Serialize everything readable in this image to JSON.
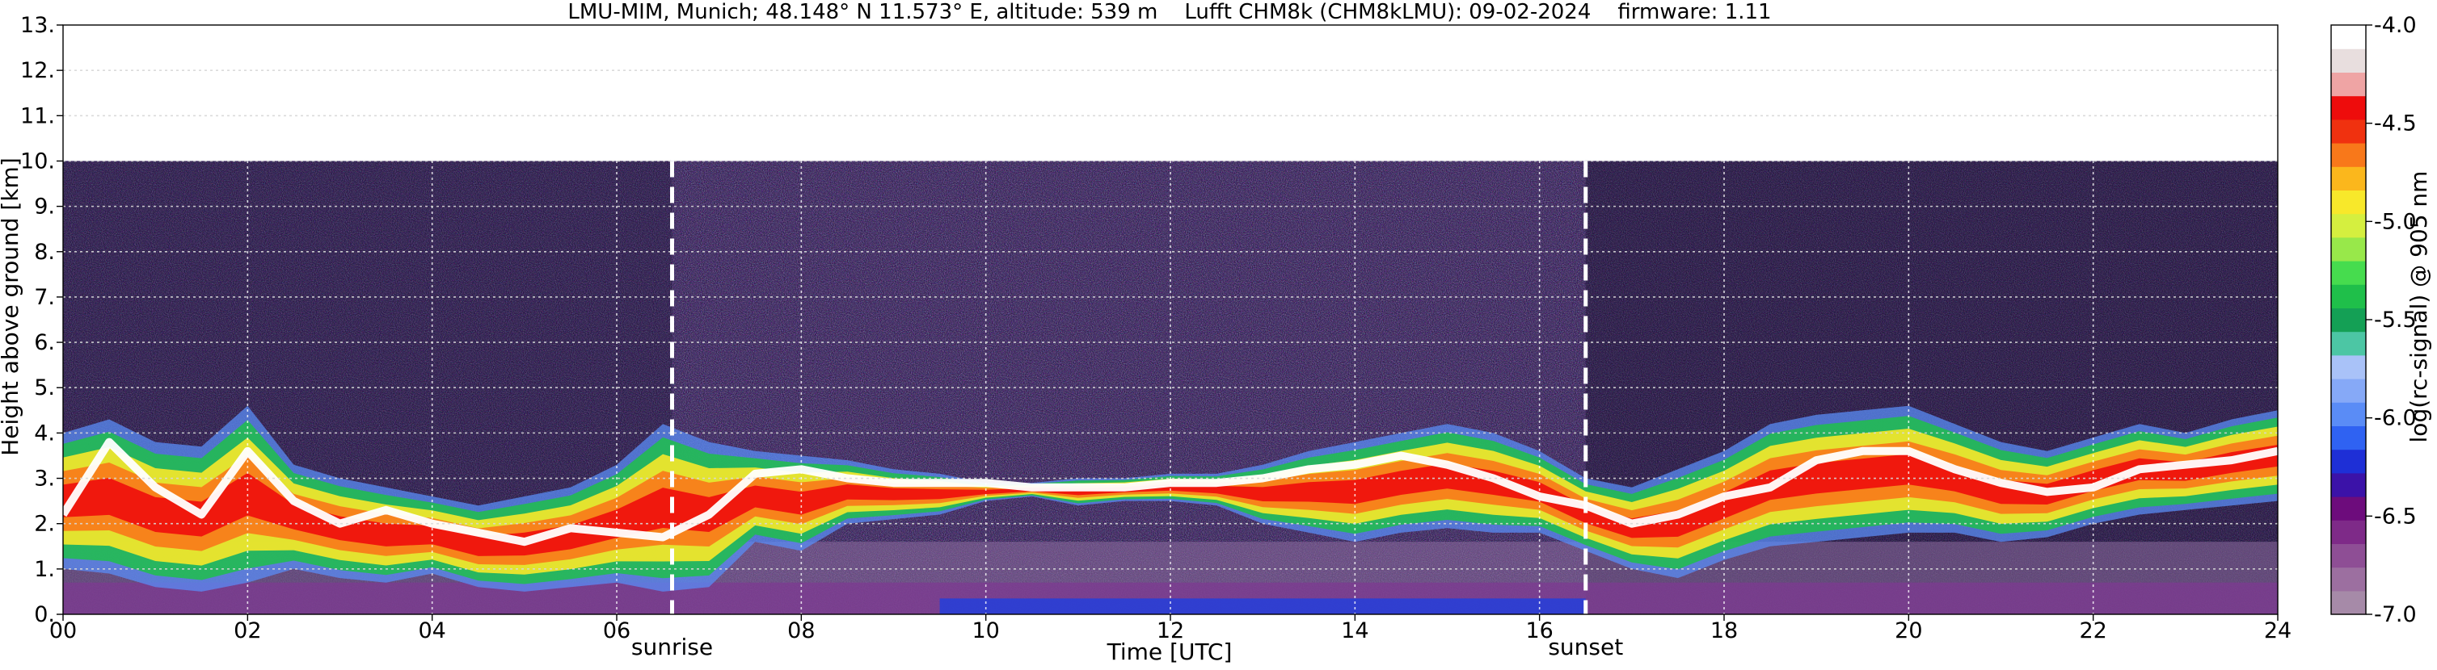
{
  "chart_data": {
    "type": "heatmap",
    "title": "LMU-MIM, Munich; 48.148° N 11.573° E, altitude: 539 m    Lufft CHM8k (CHM8kLMU): 09-02-2024    firmware: 1.11",
    "xlabel": "Time [UTC]",
    "ylabel": "Height above ground [km]",
    "xlim": [
      0,
      24
    ],
    "ylim": [
      0,
      13
    ],
    "x_ticks": [
      0,
      2,
      4,
      6,
      8,
      10,
      12,
      14,
      16,
      18,
      20,
      22,
      24
    ],
    "x_tick_labels": [
      "00",
      "02",
      "04",
      "06",
      "08",
      "10",
      "12",
      "14",
      "16",
      "18",
      "20",
      "22",
      "24"
    ],
    "y_ticks": [
      0,
      1,
      2,
      3,
      4,
      5,
      6,
      7,
      8,
      9,
      10,
      11,
      12,
      13
    ],
    "y_tick_labels": [
      "0.",
      "1.",
      "2.",
      "3.",
      "4.",
      "5.",
      "6.",
      "7.",
      "8.",
      "9.",
      "10.",
      "11.",
      "12.",
      "13."
    ],
    "grid": true,
    "data_max_height_km": 10,
    "colorbar": {
      "label": "log(rc-signal) @ 905 nm",
      "range": [
        -7.0,
        -4.0
      ],
      "tick_values": [
        -7.0,
        -6.5,
        -6.0,
        -5.5,
        -5.0,
        -4.5,
        -4.0
      ],
      "tick_labels": [
        "-7.0",
        "-6.5",
        "-6.0",
        "-5.5",
        "-5.0",
        "-4.5",
        "-4.0"
      ],
      "colors": [
        "#a68aa8",
        "#9c6fa0",
        "#8e4e95",
        "#7e2a88",
        "#6d0c7c",
        "#3b12a8",
        "#1e2fd6",
        "#2f62f2",
        "#5a8cf6",
        "#86a9f7",
        "#a9c2f8",
        "#4cc6a4",
        "#14a055",
        "#1fbf4a",
        "#46dc4e",
        "#98e84a",
        "#d5ef3f",
        "#f8e82a",
        "#fbb71c",
        "#f8781a",
        "#f0310f",
        "#ee0c0c",
        "#efa4a4",
        "#e8dede",
        "#ffffff"
      ]
    },
    "annotations": [
      {
        "label": "sunrise",
        "x": 6.6
      },
      {
        "label": "sunset",
        "x": 16.5
      }
    ],
    "layers": {
      "cloud_layer_top_km": [
        [
          0,
          4.0
        ],
        [
          0.5,
          4.3
        ],
        [
          1.0,
          3.8
        ],
        [
          1.5,
          3.7
        ],
        [
          2.0,
          4.6
        ],
        [
          2.5,
          3.3
        ],
        [
          3.0,
          3.0
        ],
        [
          3.5,
          2.8
        ],
        [
          4.0,
          2.6
        ],
        [
          4.5,
          2.4
        ],
        [
          5.0,
          2.6
        ],
        [
          5.5,
          2.8
        ],
        [
          6.0,
          3.3
        ],
        [
          6.5,
          4.2
        ],
        [
          7.0,
          3.8
        ],
        [
          7.5,
          3.6
        ],
        [
          8.0,
          3.5
        ],
        [
          8.5,
          3.4
        ],
        [
          9.0,
          3.2
        ],
        [
          9.5,
          3.1
        ],
        [
          10.0,
          2.9
        ],
        [
          10.5,
          2.9
        ],
        [
          11.0,
          3.0
        ],
        [
          11.5,
          3.0
        ],
        [
          12.0,
          3.1
        ],
        [
          12.5,
          3.1
        ],
        [
          13.0,
          3.3
        ],
        [
          13.5,
          3.6
        ],
        [
          14.0,
          3.8
        ],
        [
          14.5,
          4.0
        ],
        [
          15.0,
          4.2
        ],
        [
          15.5,
          4.0
        ],
        [
          16.0,
          3.6
        ],
        [
          16.5,
          3.0
        ],
        [
          17.0,
          2.8
        ],
        [
          17.5,
          3.2
        ],
        [
          18.0,
          3.6
        ],
        [
          18.5,
          4.2
        ],
        [
          19.0,
          4.4
        ],
        [
          19.5,
          4.5
        ],
        [
          20.0,
          4.6
        ],
        [
          20.5,
          4.2
        ],
        [
          21.0,
          3.8
        ],
        [
          21.5,
          3.6
        ],
        [
          22.0,
          3.9
        ],
        [
          22.5,
          4.2
        ],
        [
          23.0,
          4.0
        ],
        [
          23.5,
          4.3
        ],
        [
          24.0,
          4.5
        ]
      ],
      "cloud_layer_base_km": [
        [
          0,
          1.0
        ],
        [
          0.5,
          0.9
        ],
        [
          1.0,
          0.6
        ],
        [
          1.5,
          0.5
        ],
        [
          2.0,
          0.7
        ],
        [
          2.5,
          1.0
        ],
        [
          3.0,
          0.8
        ],
        [
          3.5,
          0.7
        ],
        [
          4.0,
          0.9
        ],
        [
          4.5,
          0.6
        ],
        [
          5.0,
          0.5
        ],
        [
          5.5,
          0.6
        ],
        [
          6.0,
          0.7
        ],
        [
          6.5,
          0.5
        ],
        [
          7.0,
          0.6
        ],
        [
          7.5,
          1.6
        ],
        [
          8.0,
          1.4
        ],
        [
          8.5,
          2.0
        ],
        [
          9.0,
          2.1
        ],
        [
          9.5,
          2.2
        ],
        [
          10.0,
          2.5
        ],
        [
          10.5,
          2.6
        ],
        [
          11.0,
          2.4
        ],
        [
          11.5,
          2.5
        ],
        [
          12.0,
          2.5
        ],
        [
          12.5,
          2.4
        ],
        [
          13.0,
          2.0
        ],
        [
          13.5,
          1.8
        ],
        [
          14.0,
          1.6
        ],
        [
          14.5,
          1.8
        ],
        [
          15.0,
          1.9
        ],
        [
          15.5,
          1.8
        ],
        [
          16.0,
          1.8
        ],
        [
          16.5,
          1.4
        ],
        [
          17.0,
          1.0
        ],
        [
          17.5,
          0.8
        ],
        [
          18.0,
          1.2
        ],
        [
          18.5,
          1.5
        ],
        [
          19.0,
          1.6
        ],
        [
          19.5,
          1.7
        ],
        [
          20.0,
          1.8
        ],
        [
          20.5,
          1.8
        ],
        [
          21.0,
          1.6
        ],
        [
          21.5,
          1.7
        ],
        [
          22.0,
          2.0
        ],
        [
          22.5,
          2.2
        ],
        [
          23.0,
          2.3
        ],
        [
          23.5,
          2.4
        ],
        [
          24.0,
          2.5
        ]
      ],
      "peak_signal_height_km": [
        [
          0,
          2.2
        ],
        [
          0.5,
          3.8
        ],
        [
          1.0,
          2.8
        ],
        [
          1.5,
          2.2
        ],
        [
          2.0,
          3.6
        ],
        [
          2.5,
          2.5
        ],
        [
          3.0,
          2.0
        ],
        [
          3.5,
          2.3
        ],
        [
          4.0,
          2.0
        ],
        [
          4.5,
          1.8
        ],
        [
          5.0,
          1.6
        ],
        [
          5.5,
          1.9
        ],
        [
          6.0,
          1.8
        ],
        [
          6.5,
          1.7
        ],
        [
          7.0,
          2.2
        ],
        [
          7.5,
          3.1
        ],
        [
          8.0,
          3.2
        ],
        [
          8.5,
          3.0
        ],
        [
          9.0,
          2.9
        ],
        [
          9.5,
          2.9
        ],
        [
          10.0,
          2.9
        ],
        [
          10.5,
          2.8
        ],
        [
          11.0,
          2.8
        ],
        [
          11.5,
          2.8
        ],
        [
          12.0,
          2.9
        ],
        [
          12.5,
          2.9
        ],
        [
          13.0,
          3.0
        ],
        [
          13.5,
          3.2
        ],
        [
          14.0,
          3.3
        ],
        [
          14.5,
          3.5
        ],
        [
          15.0,
          3.3
        ],
        [
          15.5,
          3.0
        ],
        [
          16.0,
          2.6
        ],
        [
          16.5,
          2.4
        ],
        [
          17.0,
          2.0
        ],
        [
          17.5,
          2.2
        ],
        [
          18.0,
          2.6
        ],
        [
          18.5,
          2.8
        ],
        [
          19.0,
          3.4
        ],
        [
          19.5,
          3.6
        ],
        [
          20.0,
          3.6
        ],
        [
          20.5,
          3.2
        ],
        [
          21.0,
          2.9
        ],
        [
          21.5,
          2.7
        ],
        [
          22.0,
          2.8
        ],
        [
          22.5,
          3.2
        ],
        [
          23.0,
          3.3
        ],
        [
          23.5,
          3.4
        ],
        [
          24.0,
          3.6
        ]
      ]
    }
  }
}
